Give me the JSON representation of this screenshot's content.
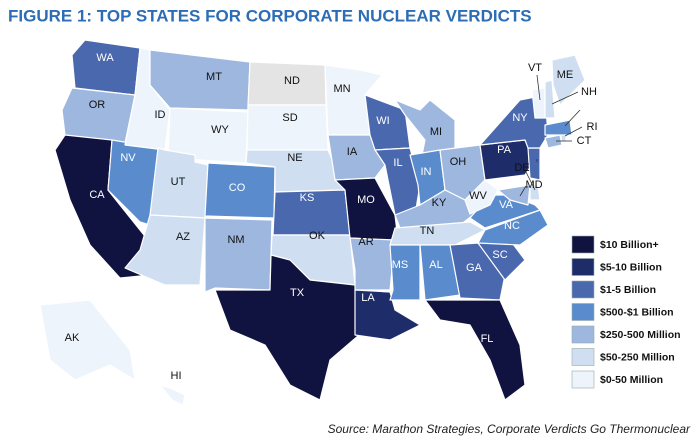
{
  "title": "FIGURE 1: TOP STATES FOR CORPORATE NUCLEAR VERDICTS",
  "legend": [
    {
      "label": "$10 Billion+",
      "color": "#10123f"
    },
    {
      "label": "$5-10 Billion",
      "color": "#1f2c6a"
    },
    {
      "label": "$1-5 Billion",
      "color": "#4a68ad"
    },
    {
      "label": "$500-$1 Billion",
      "color": "#5a8ccd"
    },
    {
      "label": "$250-500 Million",
      "color": "#9db7df"
    },
    {
      "label": "$50-250 Million",
      "color": "#cfdff1"
    },
    {
      "label": "$0-50 Million",
      "color": "#eef4fb"
    }
  ],
  "no_data_color": "#e4e4e4",
  "states": [
    {
      "abbr": "WA",
      "range": "$1-5 Billion"
    },
    {
      "abbr": "OR",
      "range": "$250-500 Million"
    },
    {
      "abbr": "CA",
      "range": "$10 Billion+"
    },
    {
      "abbr": "NV",
      "range": "$500-$1 Billion"
    },
    {
      "abbr": "ID",
      "range": "$0-50 Million"
    },
    {
      "abbr": "MT",
      "range": "$250-500 Million"
    },
    {
      "abbr": "WY",
      "range": "$0-50 Million"
    },
    {
      "abbr": "UT",
      "range": "$50-250 Million"
    },
    {
      "abbr": "AZ",
      "range": "$50-250 Million"
    },
    {
      "abbr": "CO",
      "range": "$500-$1 Billion"
    },
    {
      "abbr": "NM",
      "range": "$250-500 Million"
    },
    {
      "abbr": "ND",
      "range": null
    },
    {
      "abbr": "SD",
      "range": "$0-50 Million"
    },
    {
      "abbr": "NE",
      "range": "$50-250 Million"
    },
    {
      "abbr": "KS",
      "range": "$1-5 Billion"
    },
    {
      "abbr": "OK",
      "range": "$50-250 Million"
    },
    {
      "abbr": "TX",
      "range": "$10 Billion+"
    },
    {
      "abbr": "MN",
      "range": "$0-50 Million"
    },
    {
      "abbr": "IA",
      "range": "$250-500 Million"
    },
    {
      "abbr": "MO",
      "range": "$10 Billion+"
    },
    {
      "abbr": "AR",
      "range": "$250-500 Million"
    },
    {
      "abbr": "LA",
      "range": "$5-10 Billion"
    },
    {
      "abbr": "WI",
      "range": "$1-5 Billion"
    },
    {
      "abbr": "IL",
      "range": "$1-5 Billion"
    },
    {
      "abbr": "MI",
      "range": "$250-500 Million"
    },
    {
      "abbr": "IN",
      "range": "$500-$1 Billion"
    },
    {
      "abbr": "OH",
      "range": "$250-500 Million"
    },
    {
      "abbr": "KY",
      "range": "$250-500 Million"
    },
    {
      "abbr": "TN",
      "range": "$50-250 Million"
    },
    {
      "abbr": "MS",
      "range": "$500-$1 Billion"
    },
    {
      "abbr": "AL",
      "range": "$500-$1 Billion"
    },
    {
      "abbr": "GA",
      "range": "$1-5 Billion"
    },
    {
      "abbr": "FL",
      "range": "$10 Billion+"
    },
    {
      "abbr": "SC",
      "range": "$1-5 Billion"
    },
    {
      "abbr": "NC",
      "range": "$500-$1 Billion"
    },
    {
      "abbr": "VA",
      "range": "$500-$1 Billion"
    },
    {
      "abbr": "WV",
      "range": "$0-50 Million"
    },
    {
      "abbr": "MD",
      "range": "$250-500 Million"
    },
    {
      "abbr": "DE",
      "range": "$50-250 Million"
    },
    {
      "abbr": "PA",
      "range": "$5-10 Billion"
    },
    {
      "abbr": "NJ",
      "range": "$1-5 Billion"
    },
    {
      "abbr": "NY",
      "range": "$1-5 Billion"
    },
    {
      "abbr": "CT",
      "range": "$250-500 Million"
    },
    {
      "abbr": "RI",
      "range": "$50-250 Million"
    },
    {
      "abbr": "MA",
      "range": "$500-$1 Billion"
    },
    {
      "abbr": "VT",
      "range": "$0-50 Million"
    },
    {
      "abbr": "NH",
      "range": "$50-250 Million"
    },
    {
      "abbr": "ME",
      "range": "$50-250 Million"
    },
    {
      "abbr": "AK",
      "range": "$0-50 Million"
    },
    {
      "abbr": "HI",
      "range": "$0-50 Million"
    }
  ],
  "source": "Source: Marathon Strategies, Corporate Verdicts Go Thermonuclear"
}
